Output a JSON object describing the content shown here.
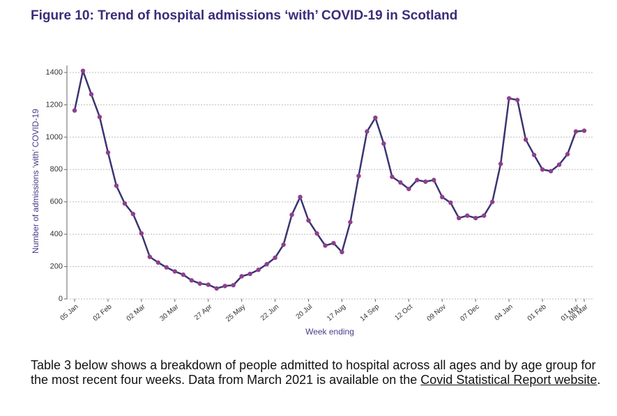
{
  "chart_data": {
    "type": "line",
    "title": "Figure 10: Trend of hospital admissions ‘with’ COVID-19 in Scotland",
    "y_label": "Number of admissions ‘with’ COVID-19",
    "x_label": "Week ending",
    "categories": [
      "05 Jan",
      null,
      null,
      null,
      "02 Feb",
      null,
      null,
      null,
      "02 Mar",
      null,
      null,
      null,
      "30 Mar",
      null,
      null,
      null,
      "27 Apr",
      null,
      null,
      null,
      "25 May",
      null,
      null,
      null,
      "22 Jun",
      null,
      null,
      null,
      "20 Jul",
      null,
      null,
      null,
      "17 Aug",
      null,
      null,
      null,
      "14 Sep",
      null,
      null,
      null,
      "12 Oct",
      null,
      null,
      null,
      "09 Nov",
      null,
      null,
      null,
      "07 Dec",
      null,
      null,
      null,
      "04 Jan",
      null,
      null,
      null,
      "01 Feb",
      null,
      null,
      null,
      "01 Mar",
      "08 Mar"
    ],
    "series": [
      {
        "color": "#3b3470",
        "marker_color": "#8e3f8e",
        "values": [
          1165,
          1410,
          1265,
          1125,
          905,
          700,
          590,
          525,
          405,
          260,
          225,
          195,
          170,
          150,
          115,
          95,
          88,
          65,
          80,
          85,
          140,
          155,
          180,
          215,
          255,
          335,
          520,
          630,
          485,
          405,
          330,
          345,
          290,
          475,
          760,
          1035,
          1120,
          960,
          755,
          720,
          680,
          735,
          725,
          735,
          630,
          595,
          500,
          515,
          500,
          515,
          600,
          835,
          1240,
          1230,
          985,
          890,
          800,
          790,
          830,
          895,
          1035,
          1040
        ]
      }
    ],
    "ylim": [
      0,
      1400
    ],
    "yticks": [
      0,
      200,
      400,
      600,
      800,
      1000,
      1200,
      1400
    ],
    "grid": true
  },
  "paragraph": {
    "text_before": "Table 3 below shows a breakdown of people admitted to hospital across all ages and by age group for the most recent four weeks.  Data from March 2021 is available on the",
    "link": "Covid Statistical Report website",
    "text_after": "."
  }
}
